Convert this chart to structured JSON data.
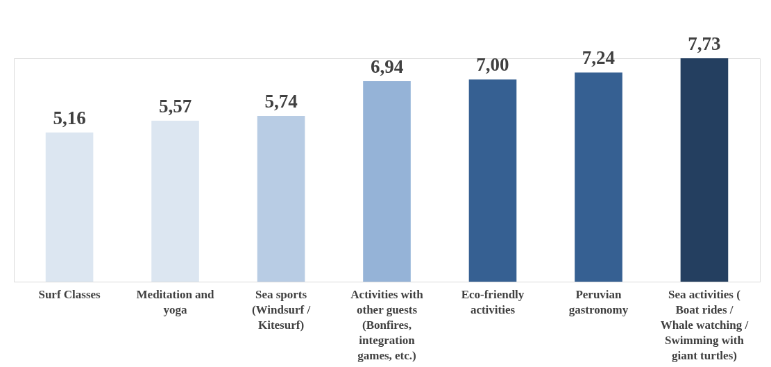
{
  "chart_data": {
    "type": "bar",
    "categories": [
      "Surf Classes",
      "Meditation and yoga",
      "Sea sports (Windsurf / Kitesurf)",
      "Activities with other guests (Bonfires, integration games, etc.)",
      "Eco-friendly activities",
      "Peruvian gastronomy",
      "Sea activities ( Boat rides / Whale watching / Swimming with giant turtles)"
    ],
    "values": [
      5.16,
      5.57,
      5.74,
      6.94,
      7.0,
      7.24,
      7.73
    ],
    "colors": [
      "#dce6f1",
      "#dce6f1",
      "#b8cce4",
      "#95b3d7",
      "#366092",
      "#366092",
      "#243f60"
    ],
    "value_labels": [
      "5,16",
      "5,57",
      "5,74",
      "6,94",
      "7,00",
      "7,24",
      "7,73"
    ],
    "grid": false
  }
}
